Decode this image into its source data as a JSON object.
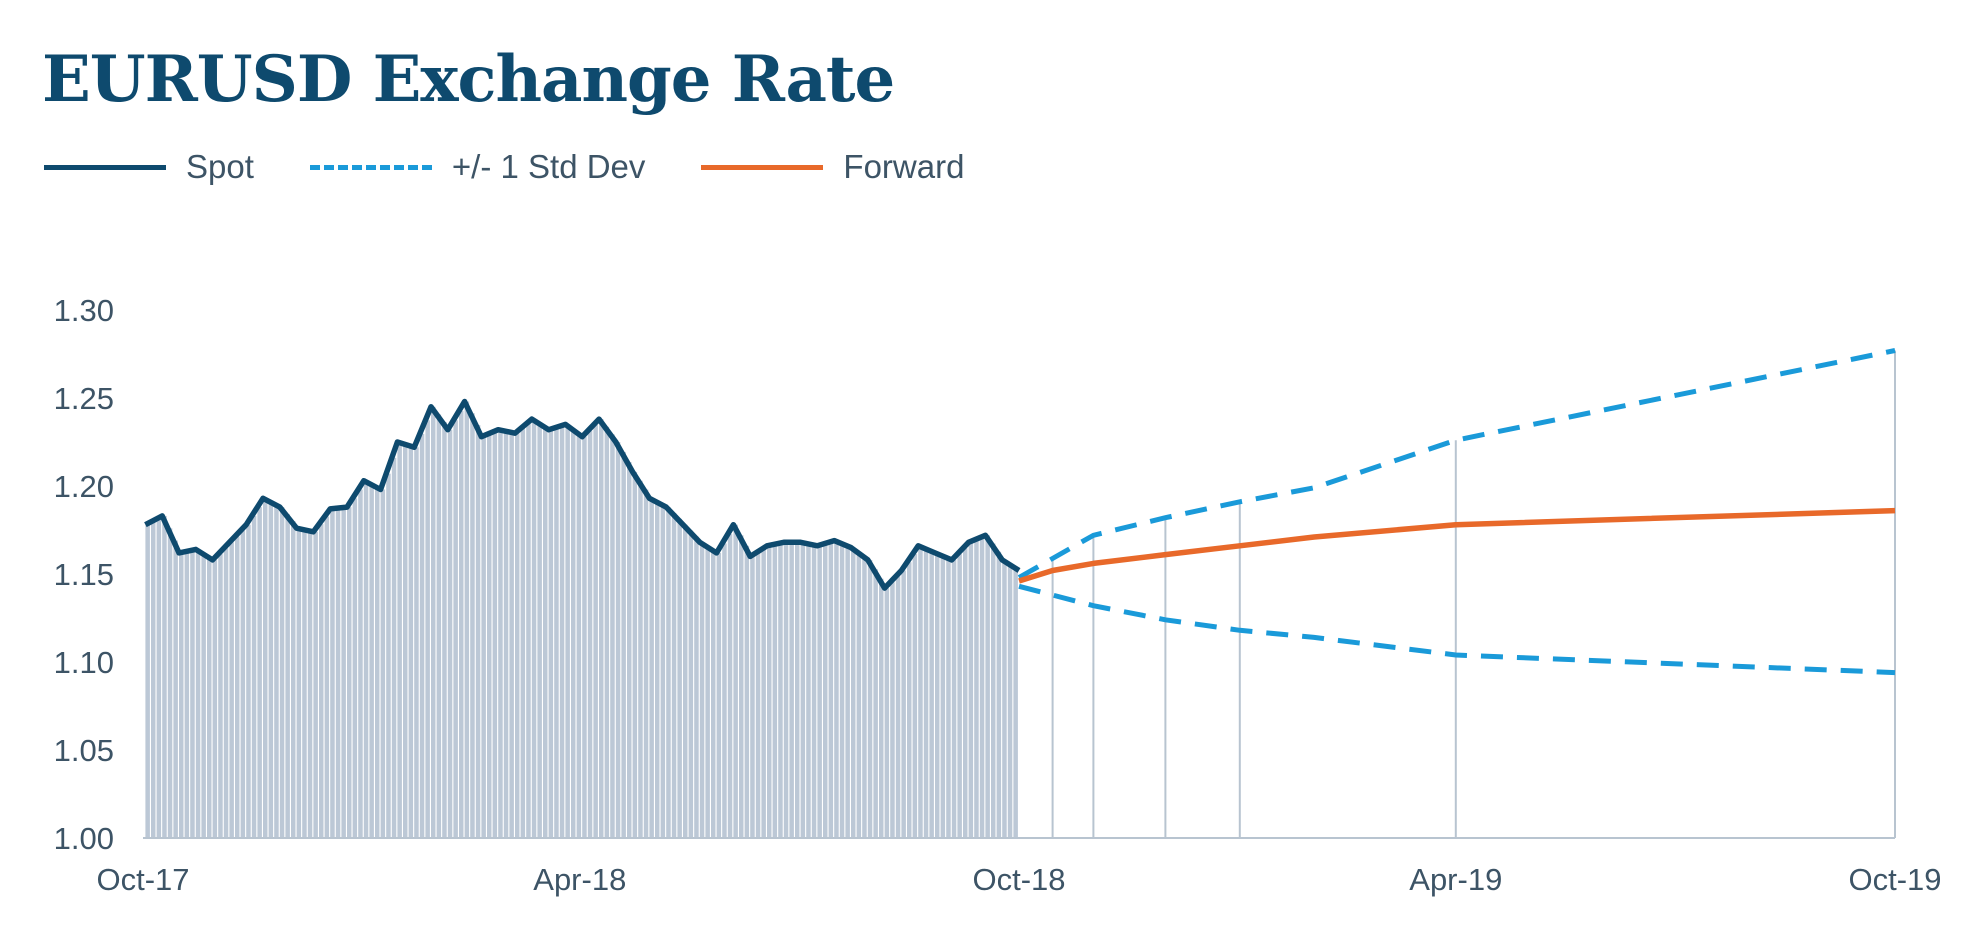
{
  "chart_data": {
    "type": "line",
    "title": "EURUSD Exchange Rate",
    "xlabel": "",
    "ylabel": "",
    "ylim": [
      1.0,
      1.3
    ],
    "yticks": [
      "1.00",
      "1.05",
      "1.10",
      "1.15",
      "1.20",
      "1.25",
      "1.30"
    ],
    "xticks": [
      "Oct-17",
      "Apr-18",
      "Oct-18",
      "Apr-19",
      "Oct-19"
    ],
    "x_range": [
      "2017-10",
      "2019-10"
    ],
    "legend_position": "top-left",
    "series": [
      {
        "name": "Spot",
        "color": "#0e4a6e",
        "style": "solid",
        "x": [
          "2017-10-02",
          "2017-10-09",
          "2017-10-16",
          "2017-10-23",
          "2017-10-30",
          "2017-11-06",
          "2017-11-13",
          "2017-11-20",
          "2017-11-27",
          "2017-12-04",
          "2017-12-11",
          "2017-12-18",
          "2017-12-25",
          "2018-01-01",
          "2018-01-08",
          "2018-01-15",
          "2018-01-22",
          "2018-01-29",
          "2018-02-05",
          "2018-02-12",
          "2018-02-19",
          "2018-02-26",
          "2018-03-05",
          "2018-03-12",
          "2018-03-19",
          "2018-03-26",
          "2018-04-02",
          "2018-04-09",
          "2018-04-16",
          "2018-04-23",
          "2018-04-30",
          "2018-05-07",
          "2018-05-14",
          "2018-05-21",
          "2018-05-28",
          "2018-06-04",
          "2018-06-11",
          "2018-06-18",
          "2018-06-25",
          "2018-07-02",
          "2018-07-09",
          "2018-07-16",
          "2018-07-23",
          "2018-07-30",
          "2018-08-06",
          "2018-08-13",
          "2018-08-20",
          "2018-08-27",
          "2018-09-03",
          "2018-09-10",
          "2018-09-17",
          "2018-09-24",
          "2018-10-01"
        ],
        "values": [
          1.178,
          1.183,
          1.162,
          1.164,
          1.158,
          1.168,
          1.178,
          1.193,
          1.188,
          1.176,
          1.174,
          1.187,
          1.188,
          1.203,
          1.198,
          1.225,
          1.222,
          1.245,
          1.232,
          1.248,
          1.228,
          1.232,
          1.23,
          1.238,
          1.232,
          1.235,
          1.228,
          1.238,
          1.225,
          1.208,
          1.193,
          1.188,
          1.178,
          1.168,
          1.162,
          1.178,
          1.16,
          1.166,
          1.168,
          1.168,
          1.166,
          1.169,
          1.165,
          1.158,
          1.142,
          1.152,
          1.166,
          1.162,
          1.158,
          1.168,
          1.172,
          1.158,
          1.152
        ]
      },
      {
        "name": "+/- 1 Std Dev",
        "color": "#1a9ad9",
        "style": "dashed",
        "x": [
          "2018-10-01",
          "2018-11-01",
          "2018-12-01",
          "2019-01-01",
          "2019-02-01",
          "2019-04-01",
          "2019-10-01"
        ],
        "upper": [
          1.148,
          1.172,
          1.182,
          1.191,
          1.199,
          1.226,
          1.277
        ],
        "lower": [
          1.143,
          1.132,
          1.124,
          1.118,
          1.114,
          1.104,
          1.094
        ]
      },
      {
        "name": "Forward",
        "color": "#e8692a",
        "style": "solid",
        "x": [
          "2018-10-01",
          "2018-10-15",
          "2018-11-01",
          "2018-12-01",
          "2019-01-01",
          "2019-02-01",
          "2019-04-01",
          "2019-10-01"
        ],
        "values": [
          1.146,
          1.152,
          1.156,
          1.161,
          1.166,
          1.171,
          1.178,
          1.186
        ]
      }
    ],
    "forecast_gridline_dates": [
      "2018-10-15",
      "2018-11-01",
      "2018-12-01",
      "2019-01-01",
      "2019-04-01",
      "2019-10-01"
    ]
  }
}
